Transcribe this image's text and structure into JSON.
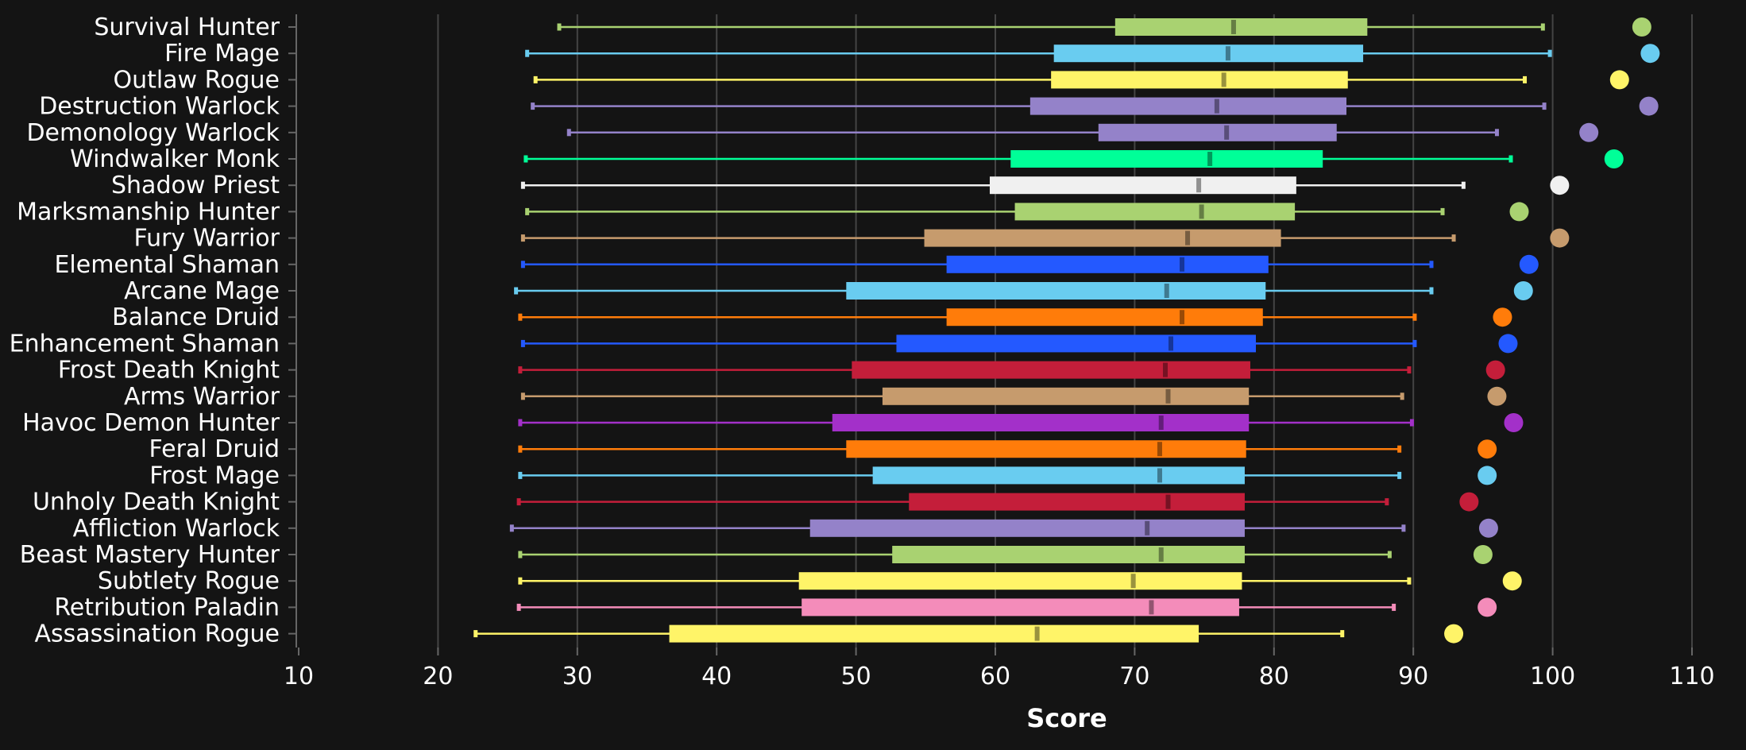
{
  "chart_data": {
    "type": "boxplot",
    "xlabel": "Score",
    "ylabel": "",
    "title": "",
    "xlim": [
      10,
      110
    ],
    "x_ticks": [
      10,
      20,
      30,
      40,
      50,
      60,
      70,
      80,
      90,
      100,
      110
    ],
    "grid": "vertical",
    "background": "#141414",
    "categories": [
      "Survival Hunter",
      "Fire Mage",
      "Outlaw Rogue",
      "Destruction Warlock",
      "Demonology Warlock",
      "Windwalker Monk",
      "Shadow Priest",
      "Marksmanship Hunter",
      "Fury Warrior",
      "Elemental Shaman",
      "Arcane Mage",
      "Balance Druid",
      "Enhancement Shaman",
      "Frost Death Knight",
      "Arms Warrior",
      "Havoc Demon Hunter",
      "Feral Druid",
      "Frost Mage",
      "Unholy Death Knight",
      "Affliction Warlock",
      "Beast Mastery Hunter",
      "Subtlety Rogue",
      "Retribution Paladin",
      "Assassination Rogue"
    ],
    "colors": [
      "#a9d271",
      "#69ccf0",
      "#fff468",
      "#9482c9",
      "#9482c9",
      "#00ff98",
      "#f0f0f0",
      "#a9d271",
      "#c69b6d",
      "#2459ff",
      "#69ccf0",
      "#ff7c0a",
      "#2459ff",
      "#c41e3a",
      "#c69b6d",
      "#a330c9",
      "#ff7c0a",
      "#69ccf0",
      "#c41e3a",
      "#9482c9",
      "#a9d271",
      "#fff468",
      "#f48cba",
      "#fff468"
    ],
    "whisker_low": [
      28.7,
      26.4,
      27.0,
      26.8,
      29.4,
      26.3,
      26.1,
      26.4,
      26.1,
      26.1,
      25.6,
      25.9,
      26.1,
      25.9,
      26.1,
      25.9,
      25.9,
      25.9,
      25.8,
      25.3,
      25.9,
      25.9,
      25.8,
      22.7
    ],
    "q1": [
      68.6,
      64.2,
      64.0,
      62.5,
      67.4,
      61.1,
      59.6,
      61.4,
      54.9,
      56.5,
      49.3,
      56.5,
      52.9,
      49.7,
      51.9,
      48.3,
      49.3,
      51.2,
      53.8,
      46.7,
      52.6,
      45.9,
      46.1,
      36.6
    ],
    "median": [
      77.1,
      76.7,
      76.4,
      75.9,
      76.6,
      75.4,
      74.6,
      74.8,
      73.8,
      73.4,
      72.3,
      73.4,
      72.6,
      72.2,
      72.4,
      71.9,
      71.8,
      71.8,
      72.4,
      70.9,
      71.9,
      69.9,
      71.2,
      63.0
    ],
    "q3": [
      86.7,
      86.4,
      85.3,
      85.2,
      84.5,
      83.5,
      81.6,
      81.5,
      80.5,
      79.6,
      79.4,
      79.2,
      78.7,
      78.3,
      78.2,
      78.2,
      78.0,
      77.9,
      77.9,
      77.9,
      77.9,
      77.7,
      77.5,
      74.6
    ],
    "whisker_high": [
      99.3,
      99.8,
      98.0,
      99.4,
      96.0,
      97.0,
      93.6,
      92.1,
      92.9,
      91.3,
      91.3,
      90.1,
      90.1,
      89.7,
      89.2,
      89.9,
      89.0,
      89.0,
      88.1,
      89.3,
      88.3,
      89.7,
      88.6,
      84.9
    ],
    "max": [
      106.4,
      107.0,
      104.8,
      106.9,
      102.6,
      104.4,
      100.5,
      97.6,
      100.5,
      98.3,
      97.9,
      96.4,
      96.8,
      95.9,
      96.0,
      97.2,
      95.3,
      95.3,
      94.0,
      95.4,
      95.0,
      97.1,
      95.3,
      92.9
    ]
  }
}
